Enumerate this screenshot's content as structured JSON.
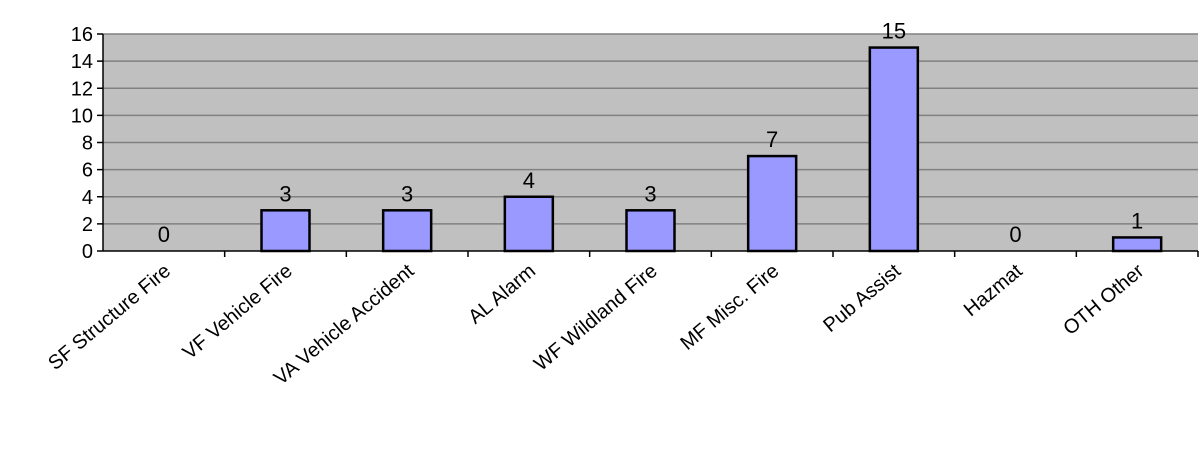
{
  "chart_data": {
    "type": "bar",
    "title": "",
    "xlabel": "",
    "ylabel": "",
    "categories": [
      "SF Structure Fire",
      "VF Vehicle Fire",
      "VA Vehicle Accident",
      "AL Alarm",
      "WF Wildland Fire",
      "MF Misc. Fire",
      "Pub Assist",
      "Hazmat",
      "OTH Other"
    ],
    "values": [
      0,
      3,
      3,
      4,
      3,
      7,
      15,
      0,
      1
    ],
    "data_labels": [
      "0",
      "3",
      "3",
      "4",
      "3",
      "7",
      "15",
      "0",
      "1"
    ],
    "ylim": [
      0,
      16
    ],
    "yticks": [
      0,
      2,
      4,
      6,
      8,
      10,
      12,
      14,
      16
    ],
    "ytick_labels": [
      "0",
      "2",
      "4",
      "6",
      "8",
      "10",
      "12",
      "14",
      "16"
    ],
    "grid": true,
    "legend": "none",
    "colors": {
      "bar_fill": "#9999ff",
      "bar_stroke": "#000000",
      "plot_background": "#c0c0c0",
      "gridline": "#808080"
    }
  }
}
